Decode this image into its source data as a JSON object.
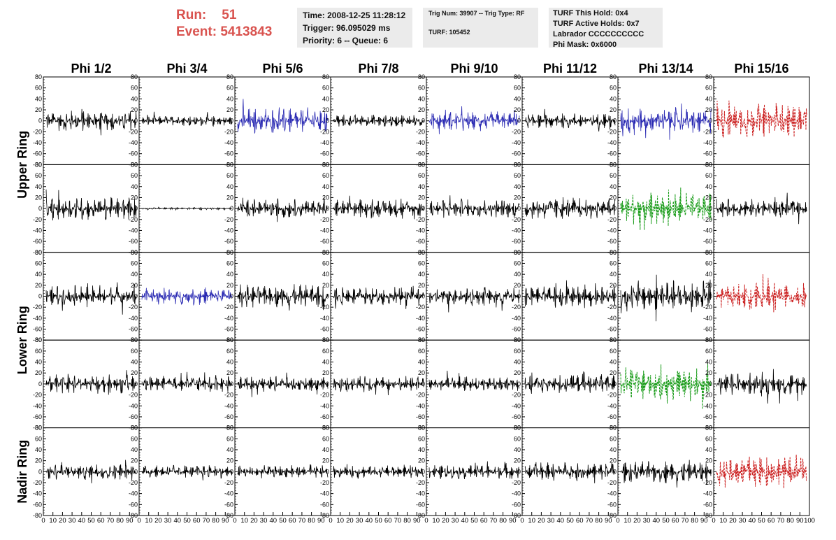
{
  "header": {
    "run_label": "Run:",
    "run_value": "51",
    "event_label": "Event:",
    "event_value": "5413843",
    "time": "Time: 2008-12-25 11:28:12",
    "trigger": "Trigger: 96.095029 ms",
    "priority": "Priority: 6 -- Queue: 6",
    "trig_num": "Trig Num: 39907 -- Trig Type: RF",
    "turf": "TURF: 105452",
    "turf_hold": "TURF This Hold: 0x4",
    "turf_active": "TURF Active Holds: 0x7",
    "labrador": "Labrador CCCCCCCCCC",
    "phi_mask": "Phi Mask: 0x6000"
  },
  "chart_data": {
    "type": "line",
    "columns": [
      "Phi 1/2",
      "Phi 3/4",
      "Phi 5/6",
      "Phi 7/8",
      "Phi 9/10",
      "Phi 11/12",
      "Phi 13/14",
      "Phi 15/16"
    ],
    "ring_labels": [
      "Upper Ring",
      "Lower Ring",
      "Nadir Ring"
    ],
    "ylim": [
      -80,
      80
    ],
    "xlim": [
      0,
      100
    ],
    "y_ticks": [
      80,
      60,
      40,
      20,
      0,
      -20,
      -40,
      -60,
      -80
    ],
    "x_ticks": [
      0,
      10,
      20,
      30,
      40,
      50,
      60,
      70,
      80,
      90,
      100
    ],
    "colors": {
      "black": "#000000",
      "blue": "#2b2bb3",
      "green": "#1a9c1a",
      "red": "#cc2222"
    },
    "rows": [
      {
        "colors": [
          "black",
          "black",
          "blue",
          "black",
          "blue",
          "black",
          "blue",
          "red"
        ],
        "amplitudes": [
          20,
          10,
          25,
          12,
          18,
          15,
          25,
          32
        ],
        "dashed": [
          false,
          false,
          false,
          false,
          false,
          false,
          false,
          true
        ]
      },
      {
        "colors": [
          "black",
          "black",
          "black",
          "black",
          "black",
          "black",
          "green",
          "black"
        ],
        "amplitudes": [
          22,
          2,
          18,
          18,
          18,
          20,
          30,
          18
        ],
        "dashed": [
          false,
          false,
          false,
          false,
          false,
          false,
          true,
          false
        ]
      },
      {
        "colors": [
          "black",
          "blue",
          "black",
          "black",
          "black",
          "black",
          "black",
          "red"
        ],
        "amplitudes": [
          20,
          16,
          22,
          18,
          18,
          22,
          30,
          25
        ],
        "dashed": [
          false,
          false,
          false,
          false,
          false,
          false,
          false,
          true
        ]
      },
      {
        "colors": [
          "black",
          "black",
          "black",
          "black",
          "black",
          "black",
          "green",
          "black"
        ],
        "amplitudes": [
          18,
          15,
          15,
          15,
          15,
          18,
          32,
          22
        ],
        "dashed": [
          false,
          false,
          false,
          false,
          false,
          false,
          true,
          false
        ]
      },
      {
        "colors": [
          "black",
          "black",
          "black",
          "black",
          "black",
          "black",
          "black",
          "red"
        ],
        "amplitudes": [
          16,
          12,
          12,
          12,
          14,
          18,
          22,
          32
        ],
        "dashed": [
          false,
          false,
          false,
          false,
          false,
          false,
          false,
          true
        ]
      }
    ]
  }
}
